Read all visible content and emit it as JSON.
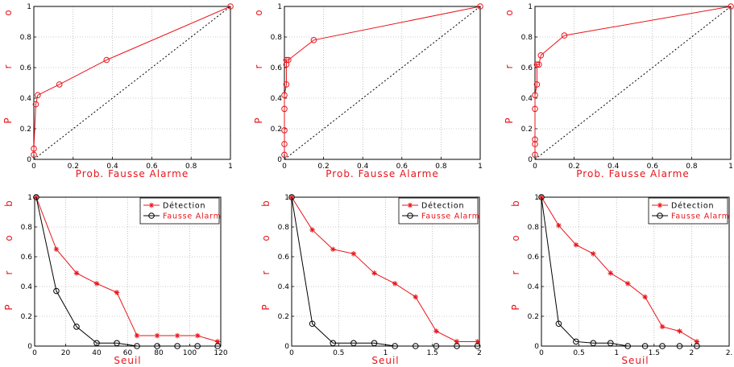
{
  "chart_data": [
    {
      "type": "line",
      "xlabel": "Prob. Fausse Alarme",
      "ylabel_chars": [
        "P",
        "r",
        "o"
      ],
      "xlim": [
        0,
        1
      ],
      "ylim": [
        0,
        1
      ],
      "xticks": [
        "0",
        "0.2",
        "0.4",
        "0.6",
        "0.8",
        "1"
      ],
      "yticks": [
        "0",
        "0.2",
        "0.4",
        "0.6",
        "0.8",
        "1"
      ],
      "grid": true,
      "series": [
        {
          "role": "roc",
          "color": "#e8141b",
          "marker": "circle",
          "x": [
            0,
            0,
            0.01,
            0.02,
            0.13,
            0.37,
            1
          ],
          "y": [
            0.03,
            0.07,
            0.36,
            0.42,
            0.49,
            0.65,
            1
          ]
        },
        {
          "role": "diagonal",
          "color": "#000000",
          "marker": "none",
          "dashed": true,
          "x": [
            0,
            1
          ],
          "y": [
            0,
            1
          ]
        }
      ]
    },
    {
      "type": "line",
      "xlabel": "Prob. Fausse Alarme",
      "ylabel_chars": [
        "P",
        "r",
        "o"
      ],
      "xlim": [
        0,
        1
      ],
      "ylim": [
        0,
        1
      ],
      "xticks": [
        "0",
        "0.2",
        "0.4",
        "0.6",
        "0.8",
        "1"
      ],
      "yticks": [
        "0",
        "0.2",
        "0.4",
        "0.6",
        "0.8",
        "1"
      ],
      "grid": true,
      "series": [
        {
          "role": "roc",
          "color": "#e8141b",
          "marker": "circle",
          "x": [
            0,
            0,
            0,
            0,
            0,
            0.01,
            0.01,
            0.01,
            0.02,
            0.15,
            1
          ],
          "y": [
            0.03,
            0.1,
            0.19,
            0.33,
            0.42,
            0.49,
            0.62,
            0.65,
            0.65,
            0.78,
            1
          ]
        },
        {
          "role": "diagonal",
          "color": "#000000",
          "marker": "none",
          "dashed": true,
          "x": [
            0,
            1
          ],
          "y": [
            0,
            1
          ]
        }
      ]
    },
    {
      "type": "line",
      "xlabel": "Prob. Fausse Alarme",
      "ylabel_chars": [
        "P",
        "r",
        "o"
      ],
      "xlim": [
        0,
        1
      ],
      "ylim": [
        0,
        1
      ],
      "xticks": [
        "0",
        "0.2",
        "0.4",
        "0.6",
        "0.8",
        "1"
      ],
      "yticks": [
        "0",
        "0.2",
        "0.4",
        "0.6",
        "0.8",
        "1"
      ],
      "grid": true,
      "series": [
        {
          "role": "roc",
          "color": "#e8141b",
          "marker": "circle",
          "x": [
            0,
            0,
            0,
            0,
            0,
            0.01,
            0.01,
            0.02,
            0.03,
            0.15,
            1
          ],
          "y": [
            0.03,
            0.1,
            0.13,
            0.33,
            0.42,
            0.49,
            0.62,
            0.62,
            0.68,
            0.81,
            1
          ]
        },
        {
          "role": "diagonal",
          "color": "#000000",
          "marker": "none",
          "dashed": true,
          "x": [
            0,
            1
          ],
          "y": [
            0,
            1
          ]
        }
      ]
    },
    {
      "type": "line",
      "xlabel": "Seuil",
      "ylabel_chars": [
        "P",
        "r",
        "o",
        "b"
      ],
      "xlim": [
        0,
        120
      ],
      "ylim": [
        0,
        1
      ],
      "xticks": [
        "0",
        "20",
        "40",
        "60",
        "80",
        "100",
        "120"
      ],
      "yticks": [
        "0",
        "0.2",
        "0.4",
        "0.6",
        "0.8",
        "1"
      ],
      "grid": true,
      "legend": {
        "position": "top-right",
        "entries": [
          "Détection",
          "Fausse Alarm"
        ]
      },
      "series": [
        {
          "name": "Détection",
          "color": "#e8141b",
          "marker": "star",
          "x": [
            1,
            14,
            27,
            40,
            53,
            66,
            79,
            92,
            105,
            118
          ],
          "y": [
            1,
            0.65,
            0.49,
            0.42,
            0.36,
            0.07,
            0.07,
            0.07,
            0.07,
            0.03
          ]
        },
        {
          "name": "Fausse Alarm",
          "color": "#000000",
          "marker": "circle",
          "x": [
            1,
            14,
            27,
            40,
            53,
            66,
            79,
            92,
            105,
            118
          ],
          "y": [
            1,
            0.37,
            0.13,
            0.02,
            0.02,
            0.0,
            0.0,
            0.0,
            0.0,
            0.0
          ]
        }
      ]
    },
    {
      "type": "line",
      "xlabel": "Seuil",
      "ylabel_chars": [
        "P",
        "r",
        "o",
        "b"
      ],
      "xlim": [
        0,
        2
      ],
      "ylim": [
        0,
        1
      ],
      "xticks": [
        "0",
        "0.5",
        "1",
        "1.5",
        "2"
      ],
      "yticks": [
        "0",
        "0.2",
        "0.4",
        "0.6",
        "0.8",
        "1"
      ],
      "grid": true,
      "legend": {
        "position": "top-right",
        "entries": [
          "Détection",
          "Fausse Alarm"
        ]
      },
      "series": [
        {
          "name": "Détection",
          "color": "#e8141b",
          "marker": "star",
          "x": [
            0,
            0.22,
            0.44,
            0.66,
            0.88,
            1.1,
            1.32,
            1.54,
            1.76,
            1.98
          ],
          "y": [
            1,
            0.78,
            0.65,
            0.62,
            0.49,
            0.42,
            0.33,
            0.1,
            0.03,
            0.03
          ]
        },
        {
          "name": "Fausse Alarm",
          "color": "#000000",
          "marker": "circle",
          "x": [
            0,
            0.22,
            0.44,
            0.66,
            0.88,
            1.1,
            1.32,
            1.54,
            1.76,
            1.98
          ],
          "y": [
            1,
            0.15,
            0.02,
            0.02,
            0.02,
            0.0,
            0.0,
            0.0,
            0.0,
            0.0
          ]
        }
      ]
    },
    {
      "type": "line",
      "xlabel": "Seuil",
      "ylabel_chars": [
        "P",
        "r",
        "o",
        "b"
      ],
      "xlim": [
        0,
        2.5
      ],
      "ylim": [
        0,
        1
      ],
      "xticks": [
        "0",
        "0.5",
        "1",
        "1.5",
        "2",
        "2."
      ],
      "yticks": [
        "0",
        "0.2",
        "0.4",
        "0.6",
        "0.8",
        "1"
      ],
      "grid": true,
      "legend": {
        "position": "top-right",
        "entries": [
          "Détection",
          "Fausse Alarm"
        ]
      },
      "series": [
        {
          "name": "Détection",
          "color": "#e8141b",
          "marker": "star",
          "x": [
            0,
            0.23,
            0.46,
            0.69,
            0.92,
            1.15,
            1.38,
            1.61,
            1.84,
            2.07
          ],
          "y": [
            1,
            0.81,
            0.68,
            0.62,
            0.49,
            0.42,
            0.33,
            0.13,
            0.1,
            0.03
          ]
        },
        {
          "name": "Fausse Alarm",
          "color": "#000000",
          "marker": "circle",
          "x": [
            0,
            0.23,
            0.46,
            0.69,
            0.92,
            1.15,
            1.38,
            1.61,
            1.84,
            2.07
          ],
          "y": [
            1,
            0.15,
            0.03,
            0.02,
            0.02,
            0.0,
            0.0,
            0.0,
            0.0,
            0.0
          ]
        }
      ]
    }
  ]
}
